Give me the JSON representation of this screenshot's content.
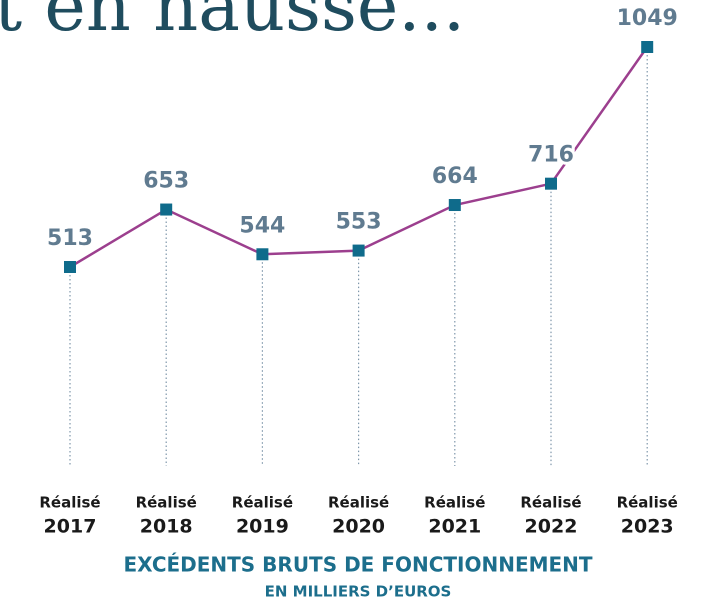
{
  "chart_data": {
    "type": "line",
    "title": "t en hausse...",
    "subtitle": "EXCÉDENTS BRUTS DE FONCTIONNEMENT",
    "unit_label": "EN MILLIERS D’EUROS",
    "categories": [
      [
        "Réalisé",
        "2017"
      ],
      [
        "Réalisé",
        "2018"
      ],
      [
        "Réalisé",
        "2019"
      ],
      [
        "Réalisé",
        "2020"
      ],
      [
        "Réalisé",
        "2021"
      ],
      [
        "Réalisé",
        "2022"
      ],
      [
        "Réalisé",
        "2023"
      ]
    ],
    "values": [
      513,
      653,
      544,
      553,
      664,
      716,
      1049
    ],
    "color": "#9c3f8e",
    "marker_color": "#0f6b8b"
  }
}
